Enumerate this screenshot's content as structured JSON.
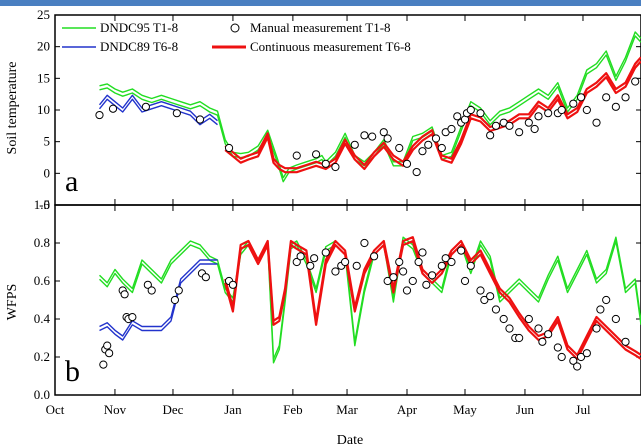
{
  "chart_data": [
    {
      "type": "line",
      "panel_label": "a",
      "ylabel": "Soil temperature",
      "ylim": [
        -5,
        25
      ],
      "yticks": [
        "-5",
        "0",
        "5",
        "10",
        "15",
        "20",
        "25"
      ],
      "legend": {
        "placement": "top",
        "entries": [
          {
            "label": "DNDC95 T1-8",
            "color": "#22dd22",
            "kind": "line"
          },
          {
            "label": "Manual measurement T1-8",
            "color": "#000000",
            "kind": "circle"
          },
          {
            "label": "DNDC89 T6-8",
            "color": "#2233cc",
            "kind": "line"
          },
          {
            "label": "Continuous measurement T6-8",
            "color": "#ee1111",
            "kind": "line"
          }
        ]
      },
      "series": [
        {
          "name": "DNDC95 T1-8",
          "color": "#22dd22",
          "x": [
            23,
            27,
            31,
            35,
            40,
            45,
            50,
            55,
            60,
            65,
            70,
            75,
            80,
            84,
            88,
            92,
            96,
            100,
            105,
            110,
            115,
            118,
            121,
            125,
            130,
            135,
            138,
            140,
            145,
            150,
            155,
            160,
            165,
            170,
            175,
            180,
            185,
            190,
            195,
            200,
            205,
            210,
            215,
            220,
            225,
            230,
            235,
            240,
            245,
            250,
            255,
            260,
            265,
            270,
            275,
            280,
            285,
            290,
            295,
            300,
            303
          ],
          "y": [
            13.5,
            13.8,
            13,
            12.5,
            13,
            12,
            11.5,
            12,
            11.5,
            11,
            10.5,
            11,
            10,
            9.5,
            5,
            3,
            2.8,
            3,
            4,
            6.5,
            2,
            -1,
            0.5,
            1,
            1.5,
            2,
            2.5,
            1.5,
            3,
            6,
            2.5,
            1.5,
            3,
            5,
            1.5,
            1.5,
            5.5,
            6,
            7,
            2.5,
            3,
            7,
            11,
            10,
            8,
            9.5,
            10,
            11,
            12,
            13,
            12,
            14,
            10,
            12,
            16,
            17,
            19,
            15,
            18,
            22,
            21
          ]
        },
        {
          "name": "DNDC89 T6-8",
          "color": "#2233cc",
          "x": [
            23,
            27,
            31,
            35,
            40,
            45,
            50,
            55,
            60,
            65,
            70,
            75,
            80,
            84
          ],
          "y": [
            10.5,
            12,
            11,
            10,
            12,
            10,
            10.5,
            11,
            10.5,
            10,
            9.5,
            8,
            9,
            8
          ]
        },
        {
          "name": "Continuous measurement T6-8",
          "color": "#ee1111",
          "x": [
            88,
            92,
            96,
            100,
            105,
            110,
            113,
            116,
            119,
            122,
            125,
            130,
            135,
            140,
            145,
            150,
            155,
            160,
            165,
            170,
            175,
            180,
            185,
            190,
            195,
            200,
            205,
            210,
            215,
            220,
            225,
            230,
            235,
            240,
            245,
            250,
            255,
            260,
            265,
            270,
            275,
            280,
            285,
            290,
            295,
            300,
            303
          ],
          "y": [
            4,
            3,
            2,
            2.5,
            3,
            6,
            2,
            1,
            0.5,
            0.5,
            0.5,
            1,
            1.5,
            1,
            2,
            5,
            2.5,
            1,
            3,
            4.5,
            2.5,
            1.5,
            4,
            5.5,
            6.5,
            2.5,
            2,
            5,
            9,
            8.5,
            7,
            7.5,
            8,
            9,
            9,
            11,
            10,
            12,
            9,
            10,
            13,
            14,
            15.5,
            13,
            14,
            17,
            18
          ]
        }
      ],
      "manual": {
        "name": "Manual measurement T1-8",
        "x": [
          23,
          30,
          47,
          63,
          75,
          90,
          125,
          135,
          140,
          145,
          155,
          160,
          164,
          170,
          172,
          178,
          182,
          187,
          190,
          193,
          197,
          200,
          202,
          205,
          208,
          210,
          212,
          213,
          215,
          220,
          225,
          228,
          232,
          235,
          240,
          245,
          248,
          250,
          255,
          260,
          262,
          268,
          272,
          275,
          280,
          285,
          290,
          295,
          300
        ],
        "y": [
          9.2,
          10.2,
          10.5,
          9.5,
          8.5,
          4,
          2.8,
          3,
          1.5,
          1,
          4.5,
          6,
          5.8,
          6.5,
          5.5,
          4,
          1.5,
          0.2,
          3.5,
          4.5,
          5.5,
          4,
          6.5,
          7,
          9,
          8,
          8.5,
          9.5,
          10,
          9.5,
          6,
          7.5,
          8,
          7.5,
          6.5,
          8,
          7,
          9,
          9.5,
          9.5,
          10,
          11,
          12,
          10,
          8,
          12,
          10.5,
          12,
          14.5
        ]
      }
    },
    {
      "type": "line",
      "panel_label": "b",
      "ylabel": "WFPS",
      "xlabel": "Date",
      "ylim": [
        0.0,
        1.0
      ],
      "yticks": [
        "0.0",
        "0.2",
        "0.4",
        "0.6",
        "0.8",
        "1.0"
      ],
      "xticks": [
        "Oct",
        "Nov",
        "Dec",
        "Jan",
        "Feb",
        "Mar",
        "Apr",
        "May",
        "Jun",
        "Jul"
      ],
      "series": [
        {
          "name": "DNDC95 T1-8",
          "color": "#22dd22",
          "x": [
            23,
            27,
            31,
            35,
            40,
            45,
            50,
            55,
            60,
            65,
            70,
            75,
            80,
            84,
            88,
            92,
            96,
            100,
            105,
            110,
            113,
            116,
            119,
            122,
            125,
            130,
            135,
            140,
            145,
            150,
            155,
            160,
            165,
            170,
            175,
            180,
            185,
            190,
            195,
            200,
            205,
            210,
            215,
            220,
            225,
            230,
            235,
            240,
            245,
            250,
            255,
            260,
            265,
            270,
            275,
            280,
            285,
            290,
            295,
            300,
            303
          ],
          "y": [
            0.62,
            0.58,
            0.65,
            0.6,
            0.55,
            0.7,
            0.65,
            0.6,
            0.7,
            0.75,
            0.8,
            0.78,
            0.72,
            0.7,
            0.55,
            0.5,
            0.75,
            0.8,
            0.7,
            0.8,
            0.18,
            0.25,
            0.5,
            0.78,
            0.8,
            0.7,
            0.55,
            0.77,
            0.8,
            0.75,
            0.27,
            0.55,
            0.75,
            0.8,
            0.5,
            0.82,
            0.78,
            0.65,
            0.6,
            0.55,
            0.75,
            0.8,
            0.65,
            0.8,
            0.72,
            0.5,
            0.55,
            0.6,
            0.55,
            0.5,
            0.62,
            0.72,
            0.55,
            0.65,
            0.75,
            0.6,
            0.65,
            0.82,
            0.55,
            0.6,
            0.38
          ]
        },
        {
          "name": "DNDC89 T6-8",
          "color": "#2233cc",
          "x": [
            23,
            27,
            31,
            35,
            40,
            45,
            50,
            55,
            60,
            65,
            70,
            75,
            80,
            84
          ],
          "y": [
            0.35,
            0.37,
            0.33,
            0.3,
            0.38,
            0.35,
            0.35,
            0.35,
            0.4,
            0.6,
            0.65,
            0.7,
            0.7,
            0.7
          ]
        },
        {
          "name": "Continuous measurement T6-8",
          "color": "#ee1111",
          "x": [
            88,
            92,
            96,
            100,
            105,
            110,
            113,
            116,
            119,
            122,
            125,
            130,
            135,
            140,
            145,
            150,
            155,
            160,
            165,
            170,
            175,
            180,
            185,
            190,
            195,
            200,
            205,
            210,
            215,
            220,
            225,
            230,
            235,
            240,
            245,
            250,
            255,
            260,
            265,
            270,
            275,
            280,
            285,
            290,
            295,
            300,
            303
          ],
          "y": [
            0.6,
            0.45,
            0.78,
            0.8,
            0.7,
            0.8,
            0.38,
            0.4,
            0.55,
            0.8,
            0.78,
            0.75,
            0.38,
            0.7,
            0.8,
            0.75,
            0.45,
            0.65,
            0.75,
            0.8,
            0.55,
            0.8,
            0.82,
            0.65,
            0.6,
            0.65,
            0.75,
            0.8,
            0.7,
            0.75,
            0.65,
            0.55,
            0.5,
            0.42,
            0.35,
            0.3,
            0.32,
            0.4,
            0.25,
            0.2,
            0.3,
            0.4,
            0.35,
            0.3,
            0.25,
            0.22,
            0.2
          ]
        }
      ],
      "manual": {
        "name": "Manual measurement T1-8",
        "x": [
          25,
          26,
          27,
          28,
          35,
          36,
          37,
          38,
          40,
          48,
          50,
          62,
          64,
          76,
          78,
          90,
          92,
          125,
          127,
          132,
          134,
          140,
          145,
          148,
          150,
          156,
          160,
          165,
          172,
          175,
          178,
          180,
          182,
          185,
          188,
          190,
          192,
          195,
          200,
          202,
          205,
          210,
          212,
          215,
          220,
          222,
          225,
          228,
          232,
          235,
          238,
          240,
          245,
          250,
          252,
          255,
          260,
          262,
          268,
          270,
          272,
          275,
          280,
          282,
          285,
          290,
          295
        ],
        "y": [
          0.16,
          0.24,
          0.26,
          0.22,
          0.55,
          0.53,
          0.41,
          0.4,
          0.41,
          0.58,
          0.55,
          0.5,
          0.55,
          0.64,
          0.62,
          0.6,
          0.58,
          0.7,
          0.73,
          0.68,
          0.72,
          0.75,
          0.65,
          0.68,
          0.7,
          0.68,
          0.8,
          0.73,
          0.6,
          0.62,
          0.7,
          0.65,
          0.55,
          0.6,
          0.7,
          0.75,
          0.58,
          0.63,
          0.68,
          0.72,
          0.7,
          0.76,
          0.6,
          0.68,
          0.55,
          0.5,
          0.52,
          0.45,
          0.4,
          0.35,
          0.3,
          0.3,
          0.4,
          0.35,
          0.28,
          0.32,
          0.25,
          0.2,
          0.18,
          0.15,
          0.2,
          0.22,
          0.35,
          0.45,
          0.5,
          0.4,
          0.28
        ]
      }
    }
  ]
}
